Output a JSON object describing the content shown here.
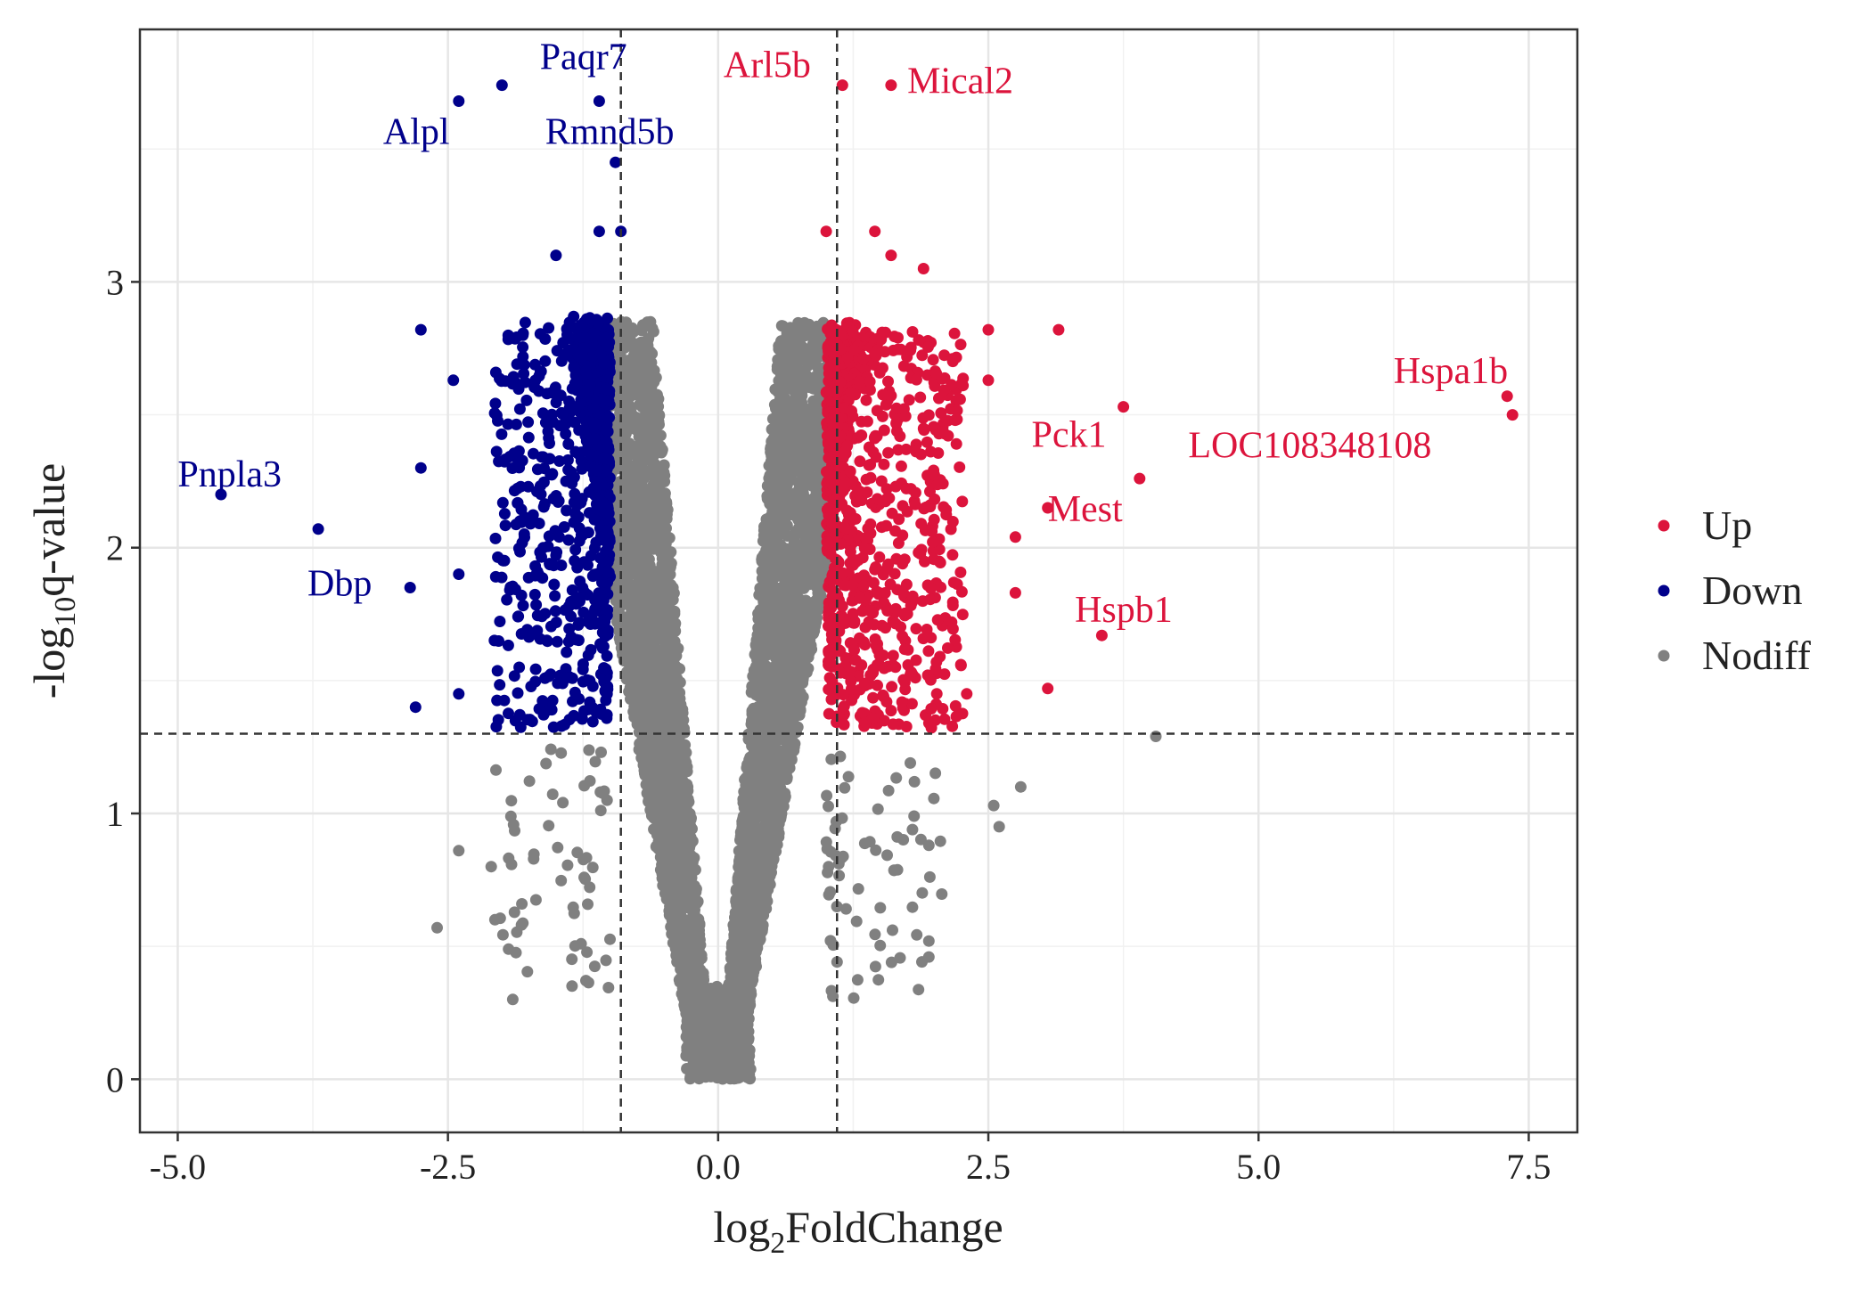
{
  "chart_data": {
    "type": "scatter",
    "subtype": "volcano",
    "title": "",
    "xlabel_base": "log",
    "xlabel_sub": "2",
    "xlabel_rest": "FoldChange",
    "ylabel_pre": "-log",
    "ylabel_sub": "10",
    "ylabel_rest": "q-value",
    "xlim": [
      -5.35,
      7.95
    ],
    "ylim": [
      -0.2,
      3.95
    ],
    "xticks": [
      -5.0,
      -2.5,
      0.0,
      2.5,
      5.0,
      7.5
    ],
    "xtick_labels": [
      "-5.0",
      "-2.5",
      "0.0",
      "2.5",
      "5.0",
      "7.5"
    ],
    "yticks": [
      0,
      1,
      2,
      3
    ],
    "ytick_labels": [
      "0",
      "1",
      "2",
      "3"
    ],
    "thresholds": {
      "log2fc_low": -1,
      "log2fc_high": 1,
      "neglog10q": 1.3
    },
    "colors": {
      "Up": "#DC143C",
      "Down": "#00008B",
      "Nodiff": "#808080"
    },
    "legend": [
      {
        "key": "Up",
        "label": "Up"
      },
      {
        "key": "Down",
        "label": "Down"
      },
      {
        "key": "Nodiff",
        "label": "Nodiff"
      }
    ],
    "legend_position": "right",
    "grid": true,
    "labeled_genes": [
      {
        "gene": "Paqr7",
        "x": -2.0,
        "y": 3.74,
        "group": "Down"
      },
      {
        "gene": "Alpl",
        "x": -2.4,
        "y": 3.68,
        "group": "Down"
      },
      {
        "gene": "Rmnd5b",
        "x": -1.1,
        "y": 3.68,
        "group": "Down"
      },
      {
        "gene": "Pnpla3",
        "x": -4.6,
        "y": 2.2,
        "group": "Down"
      },
      {
        "gene": "Dbp",
        "x": -3.7,
        "y": 2.07,
        "group": "Down"
      },
      {
        "gene": "Arl5b",
        "x": 1.15,
        "y": 3.74,
        "group": "Up"
      },
      {
        "gene": "Mical2",
        "x": 1.6,
        "y": 3.74,
        "group": "Up"
      },
      {
        "gene": "Hspa1b",
        "x": 7.3,
        "y": 2.57,
        "group": "Up"
      },
      {
        "gene": "LOC108348108",
        "x": 7.35,
        "y": 2.5,
        "group": "Up"
      },
      {
        "gene": "Pck1",
        "x": 3.75,
        "y": 2.53,
        "group": "Up"
      },
      {
        "gene": "Mest",
        "x": 3.05,
        "y": 2.15,
        "group": "Up"
      },
      {
        "gene": "Hspb1",
        "x": 3.55,
        "y": 1.67,
        "group": "Up"
      }
    ],
    "extra_points": [
      {
        "x": -2.75,
        "y": 2.82,
        "group": "Down"
      },
      {
        "x": -2.45,
        "y": 2.63,
        "group": "Down"
      },
      {
        "x": -2.75,
        "y": 2.3,
        "group": "Down"
      },
      {
        "x": -2.85,
        "y": 1.85,
        "group": "Down"
      },
      {
        "x": -2.8,
        "y": 1.4,
        "group": "Down"
      },
      {
        "x": -2.4,
        "y": 1.45,
        "group": "Down"
      },
      {
        "x": -2.4,
        "y": 1.9,
        "group": "Down"
      },
      {
        "x": -1.5,
        "y": 3.1,
        "group": "Down"
      },
      {
        "x": -1.1,
        "y": 3.19,
        "group": "Down"
      },
      {
        "x": -0.9,
        "y": 3.19,
        "group": "Down"
      },
      {
        "x": -0.95,
        "y": 3.45,
        "group": "Down"
      },
      {
        "x": 1.0,
        "y": 3.19,
        "group": "Up"
      },
      {
        "x": 1.45,
        "y": 3.19,
        "group": "Up"
      },
      {
        "x": 1.6,
        "y": 3.1,
        "group": "Up"
      },
      {
        "x": 1.9,
        "y": 3.05,
        "group": "Up"
      },
      {
        "x": 2.5,
        "y": 2.82,
        "group": "Up"
      },
      {
        "x": 3.15,
        "y": 2.82,
        "group": "Up"
      },
      {
        "x": 2.5,
        "y": 2.63,
        "group": "Up"
      },
      {
        "x": 3.9,
        "y": 2.26,
        "group": "Up"
      },
      {
        "x": 2.75,
        "y": 2.04,
        "group": "Up"
      },
      {
        "x": 2.75,
        "y": 1.83,
        "group": "Up"
      },
      {
        "x": 3.05,
        "y": 1.47,
        "group": "Up"
      },
      {
        "x": 2.3,
        "y": 1.45,
        "group": "Up"
      },
      {
        "x": 4.05,
        "y": 1.29,
        "group": "Nodiff"
      },
      {
        "x": 2.8,
        "y": 1.1,
        "group": "Nodiff"
      },
      {
        "x": 2.55,
        "y": 1.03,
        "group": "Nodiff"
      },
      {
        "x": 2.6,
        "y": 0.95,
        "group": "Nodiff"
      },
      {
        "x": 1.95,
        "y": 0.52,
        "group": "Nodiff"
      },
      {
        "x": 1.95,
        "y": 0.88,
        "group": "Nodiff"
      },
      {
        "x": -2.6,
        "y": 0.57,
        "group": "Nodiff"
      },
      {
        "x": -2.4,
        "y": 0.86,
        "group": "Nodiff"
      },
      {
        "x": -2.1,
        "y": 0.8,
        "group": "Nodiff"
      },
      {
        "x": -1.9,
        "y": 0.3,
        "group": "Nodiff"
      }
    ],
    "background_series_note": "Thousands of additional points form a V-shaped cloud; Nodiff points cluster near x≈0, Up/Down points dense near |x|≈1–2 above y≈1.3."
  }
}
